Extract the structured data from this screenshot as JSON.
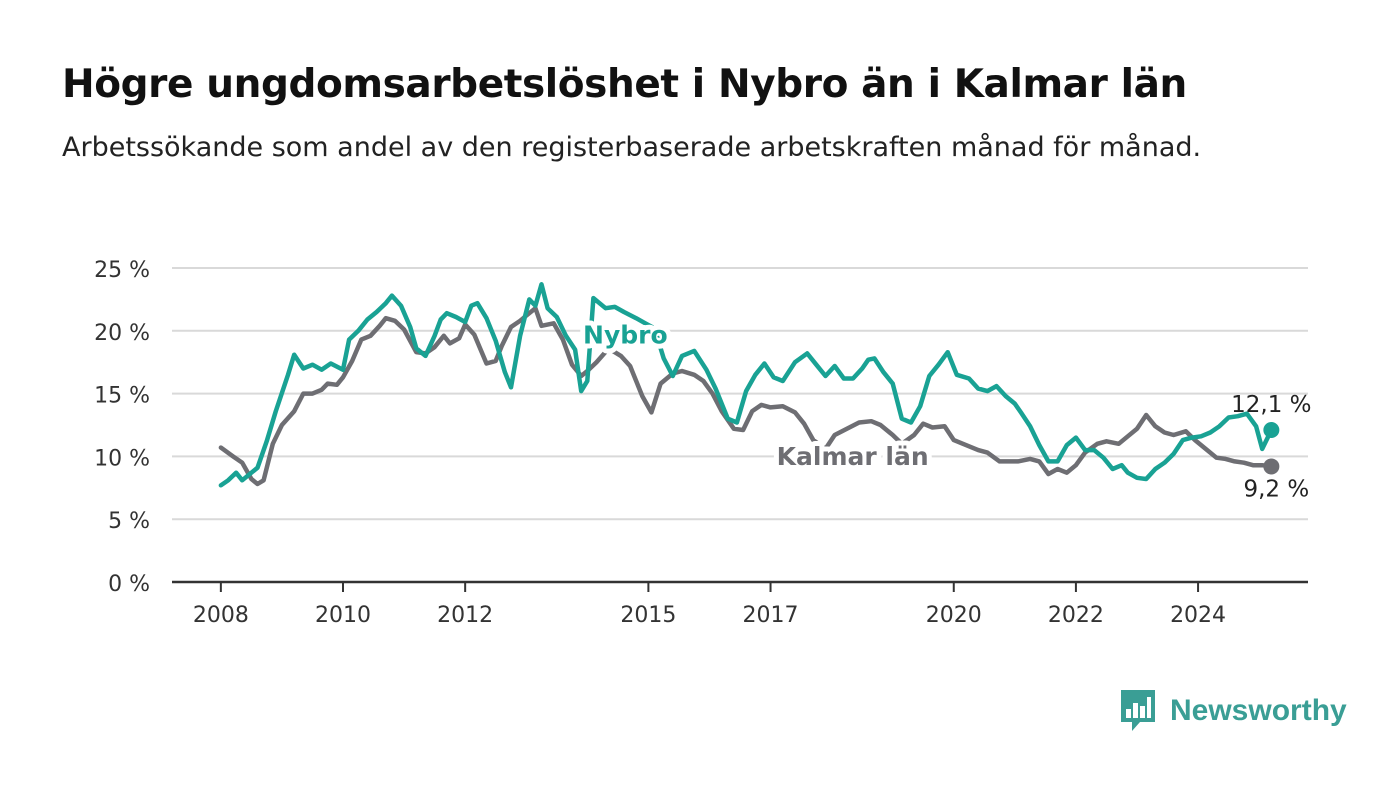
{
  "header": {
    "title": "Högre ungdomsarbetslöshet i Nybro än i Kalmar län",
    "subtitle": "Arbetssökande som andel av den registerbaserade arbetskraften månad för månad."
  },
  "brand": {
    "name": "Newsworthy",
    "icon": "newsworthy-chart-bubble-icon",
    "color": "#3a9e95"
  },
  "chart_data": {
    "type": "line",
    "y_unit": "%",
    "ylim": [
      0,
      25
    ],
    "yticks": [
      0,
      5,
      10,
      15,
      20,
      25
    ],
    "ytick_labels": [
      "0 %",
      "5 %",
      "10 %",
      "15 %",
      "20 %",
      "25 %"
    ],
    "xlim": [
      2007.2,
      2025.8
    ],
    "xticks": [
      2008,
      2010,
      2012,
      2015,
      2017,
      2020,
      2022,
      2024
    ],
    "xtick_labels": [
      "2008",
      "2010",
      "2012",
      "2015",
      "2017",
      "2020",
      "2022",
      "2024"
    ],
    "grid": true,
    "series": [
      {
        "name": "Kalmar län",
        "color": "#6e6e73",
        "end_label": "9,2 %",
        "points": [
          [
            2008.0,
            10.7
          ],
          [
            2008.2,
            10.0
          ],
          [
            2008.35,
            9.5
          ],
          [
            2008.5,
            8.2
          ],
          [
            2008.6,
            7.8
          ],
          [
            2008.7,
            8.1
          ],
          [
            2008.85,
            11.0
          ],
          [
            2009.0,
            12.5
          ],
          [
            2009.2,
            13.6
          ],
          [
            2009.35,
            15.0
          ],
          [
            2009.5,
            15.0
          ],
          [
            2009.65,
            15.3
          ],
          [
            2009.75,
            15.8
          ],
          [
            2009.9,
            15.7
          ],
          [
            2010.0,
            16.3
          ],
          [
            2010.15,
            17.6
          ],
          [
            2010.3,
            19.3
          ],
          [
            2010.45,
            19.6
          ],
          [
            2010.6,
            20.4
          ],
          [
            2010.7,
            21.0
          ],
          [
            2010.85,
            20.8
          ],
          [
            2011.0,
            20.1
          ],
          [
            2011.2,
            18.3
          ],
          [
            2011.35,
            18.2
          ],
          [
            2011.5,
            18.7
          ],
          [
            2011.65,
            19.6
          ],
          [
            2011.75,
            19.0
          ],
          [
            2011.9,
            19.4
          ],
          [
            2012.0,
            20.5
          ],
          [
            2012.15,
            19.7
          ],
          [
            2012.35,
            17.4
          ],
          [
            2012.5,
            17.6
          ],
          [
            2012.6,
            18.8
          ],
          [
            2012.75,
            20.3
          ],
          [
            2012.9,
            20.8
          ],
          [
            2013.0,
            21.2
          ],
          [
            2013.15,
            21.8
          ],
          [
            2013.25,
            20.4
          ],
          [
            2013.45,
            20.6
          ],
          [
            2013.6,
            19.3
          ],
          [
            2013.75,
            17.3
          ],
          [
            2013.9,
            16.4
          ],
          [
            2014.0,
            16.8
          ],
          [
            2014.15,
            17.5
          ],
          [
            2014.35,
            18.6
          ],
          [
            2014.55,
            18.0
          ],
          [
            2014.7,
            17.2
          ],
          [
            2014.9,
            14.8
          ],
          [
            2015.05,
            13.5
          ],
          [
            2015.2,
            15.8
          ],
          [
            2015.4,
            16.6
          ],
          [
            2015.55,
            16.8
          ],
          [
            2015.75,
            16.5
          ],
          [
            2015.9,
            16.0
          ],
          [
            2016.05,
            15.0
          ],
          [
            2016.2,
            13.6
          ],
          [
            2016.4,
            12.2
          ],
          [
            2016.55,
            12.1
          ],
          [
            2016.7,
            13.6
          ],
          [
            2016.85,
            14.1
          ],
          [
            2017.0,
            13.9
          ],
          [
            2017.2,
            14.0
          ],
          [
            2017.4,
            13.5
          ],
          [
            2017.55,
            12.6
          ],
          [
            2017.7,
            11.3
          ],
          [
            2017.9,
            10.6
          ],
          [
            2018.05,
            11.7
          ],
          [
            2018.25,
            12.2
          ],
          [
            2018.45,
            12.7
          ],
          [
            2018.65,
            12.8
          ],
          [
            2018.8,
            12.5
          ],
          [
            2019.0,
            11.7
          ],
          [
            2019.15,
            11.0
          ],
          [
            2019.35,
            11.7
          ],
          [
            2019.5,
            12.6
          ],
          [
            2019.65,
            12.3
          ],
          [
            2019.85,
            12.4
          ],
          [
            2020.0,
            11.3
          ],
          [
            2020.2,
            10.9
          ],
          [
            2020.4,
            10.5
          ],
          [
            2020.55,
            10.3
          ],
          [
            2020.75,
            9.6
          ],
          [
            2020.9,
            9.6
          ],
          [
            2021.05,
            9.6
          ],
          [
            2021.25,
            9.8
          ],
          [
            2021.4,
            9.6
          ],
          [
            2021.55,
            8.6
          ],
          [
            2021.7,
            9.0
          ],
          [
            2021.85,
            8.7
          ],
          [
            2022.0,
            9.3
          ],
          [
            2022.15,
            10.3
          ],
          [
            2022.35,
            11.0
          ],
          [
            2022.5,
            11.2
          ],
          [
            2022.7,
            11.0
          ],
          [
            2022.85,
            11.6
          ],
          [
            2023.0,
            12.2
          ],
          [
            2023.15,
            13.3
          ],
          [
            2023.3,
            12.4
          ],
          [
            2023.45,
            11.9
          ],
          [
            2023.6,
            11.7
          ],
          [
            2023.8,
            12.0
          ],
          [
            2023.95,
            11.3
          ],
          [
            2024.15,
            10.5
          ],
          [
            2024.3,
            9.9
          ],
          [
            2024.45,
            9.8
          ],
          [
            2024.6,
            9.6
          ],
          [
            2024.75,
            9.5
          ],
          [
            2024.9,
            9.3
          ],
          [
            2025.05,
            9.3
          ],
          [
            2025.2,
            9.2
          ]
        ]
      },
      {
        "name": "Nybro",
        "color": "#19a294",
        "end_label": "12,1 %",
        "points": [
          [
            2008.0,
            7.7
          ],
          [
            2008.12,
            8.1
          ],
          [
            2008.25,
            8.7
          ],
          [
            2008.35,
            8.1
          ],
          [
            2008.5,
            8.7
          ],
          [
            2008.6,
            9.1
          ],
          [
            2008.75,
            11.2
          ],
          [
            2008.9,
            13.6
          ],
          [
            2009.1,
            16.5
          ],
          [
            2009.2,
            18.1
          ],
          [
            2009.35,
            17.0
          ],
          [
            2009.5,
            17.3
          ],
          [
            2009.65,
            16.9
          ],
          [
            2009.8,
            17.4
          ],
          [
            2010.0,
            16.9
          ],
          [
            2010.1,
            19.3
          ],
          [
            2010.25,
            20.0
          ],
          [
            2010.4,
            20.9
          ],
          [
            2010.55,
            21.5
          ],
          [
            2010.7,
            22.2
          ],
          [
            2010.8,
            22.8
          ],
          [
            2010.95,
            22.0
          ],
          [
            2011.1,
            20.3
          ],
          [
            2011.2,
            18.6
          ],
          [
            2011.35,
            18.0
          ],
          [
            2011.5,
            19.6
          ],
          [
            2011.6,
            20.9
          ],
          [
            2011.7,
            21.4
          ],
          [
            2011.85,
            21.1
          ],
          [
            2012.0,
            20.7
          ],
          [
            2012.1,
            22.0
          ],
          [
            2012.2,
            22.2
          ],
          [
            2012.35,
            21.0
          ],
          [
            2012.5,
            19.2
          ],
          [
            2012.65,
            16.7
          ],
          [
            2012.75,
            15.5
          ],
          [
            2012.9,
            19.6
          ],
          [
            2013.05,
            22.5
          ],
          [
            2013.15,
            22.0
          ],
          [
            2013.25,
            23.7
          ],
          [
            2013.35,
            21.8
          ],
          [
            2013.5,
            21.1
          ],
          [
            2013.65,
            19.6
          ],
          [
            2013.8,
            18.5
          ],
          [
            2013.9,
            15.2
          ],
          [
            2014.0,
            16.0
          ],
          [
            2014.1,
            22.6
          ],
          [
            2014.3,
            21.8
          ],
          [
            2014.45,
            21.9
          ],
          [
            2014.6,
            21.5
          ],
          [
            2014.8,
            21.0
          ],
          [
            2014.95,
            20.6
          ],
          [
            2015.1,
            20.2
          ],
          [
            2015.25,
            17.8
          ],
          [
            2015.4,
            16.4
          ],
          [
            2015.55,
            18.0
          ],
          [
            2015.75,
            18.4
          ],
          [
            2015.95,
            16.9
          ],
          [
            2016.1,
            15.4
          ],
          [
            2016.3,
            13.0
          ],
          [
            2016.45,
            12.7
          ],
          [
            2016.6,
            15.2
          ],
          [
            2016.75,
            16.5
          ],
          [
            2016.9,
            17.4
          ],
          [
            2017.05,
            16.3
          ],
          [
            2017.2,
            16.0
          ],
          [
            2017.4,
            17.5
          ],
          [
            2017.6,
            18.2
          ],
          [
            2017.75,
            17.3
          ],
          [
            2017.9,
            16.4
          ],
          [
            2018.05,
            17.2
          ],
          [
            2018.2,
            16.2
          ],
          [
            2018.35,
            16.2
          ],
          [
            2018.5,
            17.0
          ],
          [
            2018.6,
            17.7
          ],
          [
            2018.7,
            17.8
          ],
          [
            2018.85,
            16.7
          ],
          [
            2019.0,
            15.8
          ],
          [
            2019.15,
            13.0
          ],
          [
            2019.3,
            12.7
          ],
          [
            2019.45,
            14.0
          ],
          [
            2019.6,
            16.4
          ],
          [
            2019.75,
            17.3
          ],
          [
            2019.9,
            18.3
          ],
          [
            2020.05,
            16.5
          ],
          [
            2020.25,
            16.2
          ],
          [
            2020.4,
            15.4
          ],
          [
            2020.55,
            15.2
          ],
          [
            2020.7,
            15.6
          ],
          [
            2020.85,
            14.8
          ],
          [
            2021.0,
            14.2
          ],
          [
            2021.1,
            13.5
          ],
          [
            2021.25,
            12.4
          ],
          [
            2021.4,
            10.9
          ],
          [
            2021.55,
            9.6
          ],
          [
            2021.7,
            9.6
          ],
          [
            2021.85,
            10.9
          ],
          [
            2022.0,
            11.5
          ],
          [
            2022.15,
            10.5
          ],
          [
            2022.3,
            10.5
          ],
          [
            2022.45,
            9.9
          ],
          [
            2022.6,
            9.0
          ],
          [
            2022.75,
            9.3
          ],
          [
            2022.85,
            8.7
          ],
          [
            2023.0,
            8.3
          ],
          [
            2023.15,
            8.2
          ],
          [
            2023.3,
            9.0
          ],
          [
            2023.45,
            9.5
          ],
          [
            2023.6,
            10.2
          ],
          [
            2023.75,
            11.3
          ],
          [
            2023.9,
            11.5
          ],
          [
            2024.05,
            11.6
          ],
          [
            2024.2,
            11.9
          ],
          [
            2024.35,
            12.4
          ],
          [
            2024.5,
            13.1
          ],
          [
            2024.65,
            13.2
          ],
          [
            2024.8,
            13.4
          ],
          [
            2024.95,
            12.4
          ],
          [
            2025.05,
            10.6
          ],
          [
            2025.2,
            12.1
          ]
        ]
      }
    ]
  }
}
